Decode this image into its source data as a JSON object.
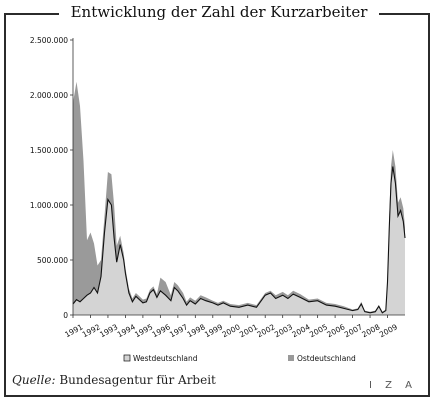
{
  "header": {
    "title": "Entwicklung der Zahl der Kurzarbeiter"
  },
  "footer": {
    "source_label": "Quelle:",
    "source_text": "Bundesagentur für Arbeit",
    "logo_text": "I Z A"
  },
  "colors": {
    "west_fill": "#d4d4d4",
    "west_line": "#111111",
    "ost_fill": "#9a9a9a",
    "frame": "#2b2b2b"
  },
  "chart_data": {
    "type": "area",
    "title": "Entwicklung der Zahl der Kurzarbeiter",
    "stacked": true,
    "ylim": [
      0,
      2500000
    ],
    "yticks": [
      0,
      500000,
      1000000,
      1500000,
      2000000,
      2500000
    ],
    "ytick_labels": [
      "0",
      "500.000",
      "1.000.000",
      "1.500.000",
      "2.000.000",
      "2.500.000"
    ],
    "xlim": [
      1991.0,
      2010.0
    ],
    "xticks": [
      1991,
      1992,
      1993,
      1994,
      1995,
      1996,
      1997,
      1998,
      1999,
      2000,
      2001,
      2002,
      2003,
      2004,
      2005,
      2006,
      2007,
      2008,
      2009
    ],
    "xtick_labels": [
      "1991",
      "1992",
      "1993",
      "1994",
      "1995",
      "1996",
      "1997",
      "1998",
      "1999",
      "2000",
      "2001",
      "2002",
      "2003",
      "2004",
      "2005",
      "2006",
      "2007",
      "2008",
      "2009"
    ],
    "legend_position": "bottom",
    "x": [
      1991.0,
      1991.2,
      1991.4,
      1991.6,
      1991.8,
      1992.0,
      1992.2,
      1992.4,
      1992.6,
      1992.8,
      1993.0,
      1993.2,
      1993.35,
      1993.5,
      1993.7,
      1993.9,
      1994.0,
      1994.2,
      1994.4,
      1994.6,
      1994.8,
      1995.0,
      1995.2,
      1995.4,
      1995.6,
      1995.8,
      1996.0,
      1996.3,
      1996.6,
      1996.8,
      1997.0,
      1997.3,
      1997.5,
      1997.7,
      1998.0,
      1998.3,
      1998.6,
      1999.0,
      1999.3,
      1999.6,
      2000.0,
      2000.5,
      2001.0,
      2001.5,
      2002.0,
      2002.3,
      2002.6,
      2003.0,
      2003.3,
      2003.6,
      2004.0,
      2004.5,
      2005.0,
      2005.5,
      2006.0,
      2006.5,
      2007.0,
      2007.3,
      2007.5,
      2007.7,
      2008.0,
      2008.3,
      2008.5,
      2008.7,
      2008.9,
      2009.0,
      2009.1,
      2009.2,
      2009.3,
      2009.45,
      2009.6,
      2009.75,
      2009.9,
      2010.0
    ],
    "series": [
      {
        "name": "Westdeutschland",
        "values": [
          100000,
          140000,
          120000,
          150000,
          180000,
          200000,
          250000,
          200000,
          350000,
          750000,
          1050000,
          1000000,
          700000,
          480000,
          640000,
          500000,
          380000,
          200000,
          120000,
          170000,
          140000,
          110000,
          120000,
          200000,
          230000,
          160000,
          220000,
          180000,
          130000,
          250000,
          220000,
          150000,
          90000,
          130000,
          100000,
          150000,
          130000,
          110000,
          90000,
          110000,
          80000,
          70000,
          90000,
          70000,
          180000,
          200000,
          150000,
          180000,
          150000,
          190000,
          160000,
          120000,
          130000,
          90000,
          80000,
          60000,
          40000,
          50000,
          100000,
          30000,
          20000,
          30000,
          80000,
          20000,
          40000,
          300000,
          800000,
          1200000,
          1350000,
          1200000,
          900000,
          950000,
          850000,
          700000
        ]
      },
      {
        "name": "Ostdeutschland",
        "values": [
          1830000,
          1980000,
          1780000,
          1250000,
          500000,
          550000,
          400000,
          250000,
          150000,
          150000,
          250000,
          280000,
          300000,
          150000,
          80000,
          60000,
          50000,
          40000,
          30000,
          30000,
          30000,
          30000,
          30000,
          30000,
          30000,
          30000,
          120000,
          120000,
          50000,
          50000,
          50000,
          50000,
          30000,
          30000,
          30000,
          30000,
          30000,
          20000,
          20000,
          20000,
          20000,
          20000,
          20000,
          20000,
          20000,
          20000,
          30000,
          30000,
          30000,
          30000,
          30000,
          20000,
          20000,
          20000,
          20000,
          20000,
          10000,
          10000,
          20000,
          10000,
          10000,
          10000,
          10000,
          10000,
          10000,
          30000,
          100000,
          150000,
          150000,
          150000,
          120000,
          120000,
          120000,
          100000
        ]
      }
    ]
  }
}
